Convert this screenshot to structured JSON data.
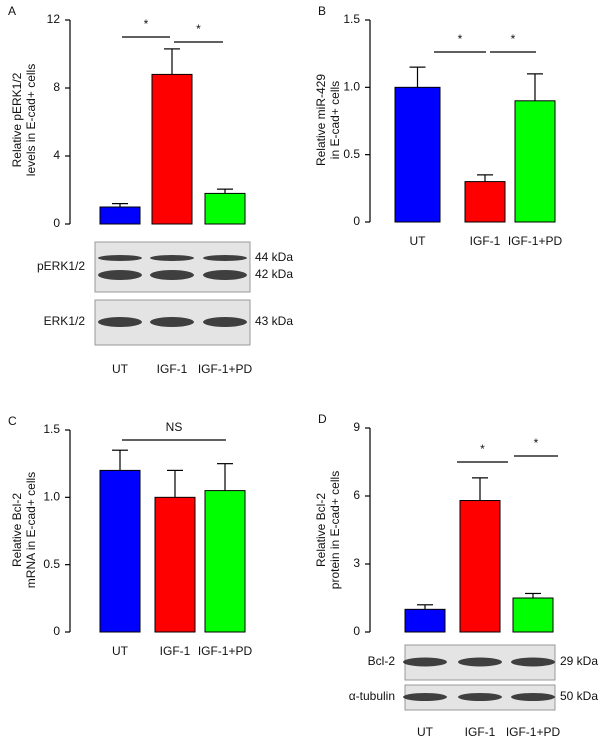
{
  "chart_data": [
    {
      "type": "bar",
      "panel": "A",
      "ylabel": [
        "Relative pERK1/2",
        "levels in E-cad+ cells"
      ],
      "categories": [
        "UT",
        "IGF-1",
        "IGF-1+PD"
      ],
      "values": [
        1.0,
        8.8,
        1.8
      ],
      "errors": [
        0.2,
        1.5,
        0.25
      ],
      "colors": [
        "#0000ff",
        "#ff0000",
        "#00ff00"
      ],
      "ylim": [
        0,
        12
      ],
      "yticks": [
        0,
        4,
        8,
        12
      ],
      "annotations": [
        "*",
        "*"
      ],
      "blot": [
        {
          "label": "pERK1/2",
          "bands": [
            "44 kDa",
            "42 kDa"
          ]
        },
        {
          "label": "ERK1/2",
          "bands": [
            "43 kDa"
          ]
        }
      ]
    },
    {
      "type": "bar",
      "panel": "B",
      "ylabel": [
        "Relative miR-429",
        "in E-cad+ cells"
      ],
      "categories": [
        "UT",
        "IGF-1",
        "IGF-1+PD"
      ],
      "values": [
        1.0,
        0.3,
        0.9
      ],
      "errors": [
        0.15,
        0.05,
        0.2
      ],
      "colors": [
        "#0000ff",
        "#ff0000",
        "#00ff00"
      ],
      "ylim": [
        0,
        1.5
      ],
      "yticks": [
        0,
        0.5,
        {
          "value": 1,
          "label": "1.0"
        },
        1.5
      ],
      "annotations": [
        "*",
        "*"
      ]
    },
    {
      "type": "bar",
      "panel": "C",
      "ylabel": [
        "Relative Bcl-2",
        "mRNA in E-cad+ cells"
      ],
      "categories": [
        "UT",
        "IGF-1",
        "IGF-1+PD"
      ],
      "values": [
        1.2,
        1.0,
        1.05
      ],
      "errors": [
        0.15,
        0.2,
        0.2
      ],
      "colors": [
        "#0000ff",
        "#ff0000",
        "#00ff00"
      ],
      "ylim": [
        0,
        1.5
      ],
      "yticks": [
        0,
        0.5,
        {
          "value": 1,
          "label": "1.0"
        },
        1.5
      ],
      "annotations": [
        "NS"
      ]
    },
    {
      "type": "bar",
      "panel": "D",
      "ylabel": [
        "Relative Bcl-2",
        "protein in E-cad+ cells"
      ],
      "categories": [
        "UT",
        "IGF-1",
        "IGF-1+PD"
      ],
      "values": [
        1.0,
        5.8,
        1.5
      ],
      "errors": [
        0.2,
        1.0,
        0.2
      ],
      "colors": [
        "#0000ff",
        "#ff0000",
        "#00ff00"
      ],
      "ylim": [
        0,
        9
      ],
      "yticks": [
        0,
        3,
        6,
        9
      ],
      "annotations": [
        "*",
        "*"
      ],
      "blot": [
        {
          "label": "Bcl-2",
          "bands": [
            "29 kDa"
          ]
        },
        {
          "label": "α-tubulin",
          "bands": [
            "50 kDa"
          ]
        }
      ]
    }
  ]
}
